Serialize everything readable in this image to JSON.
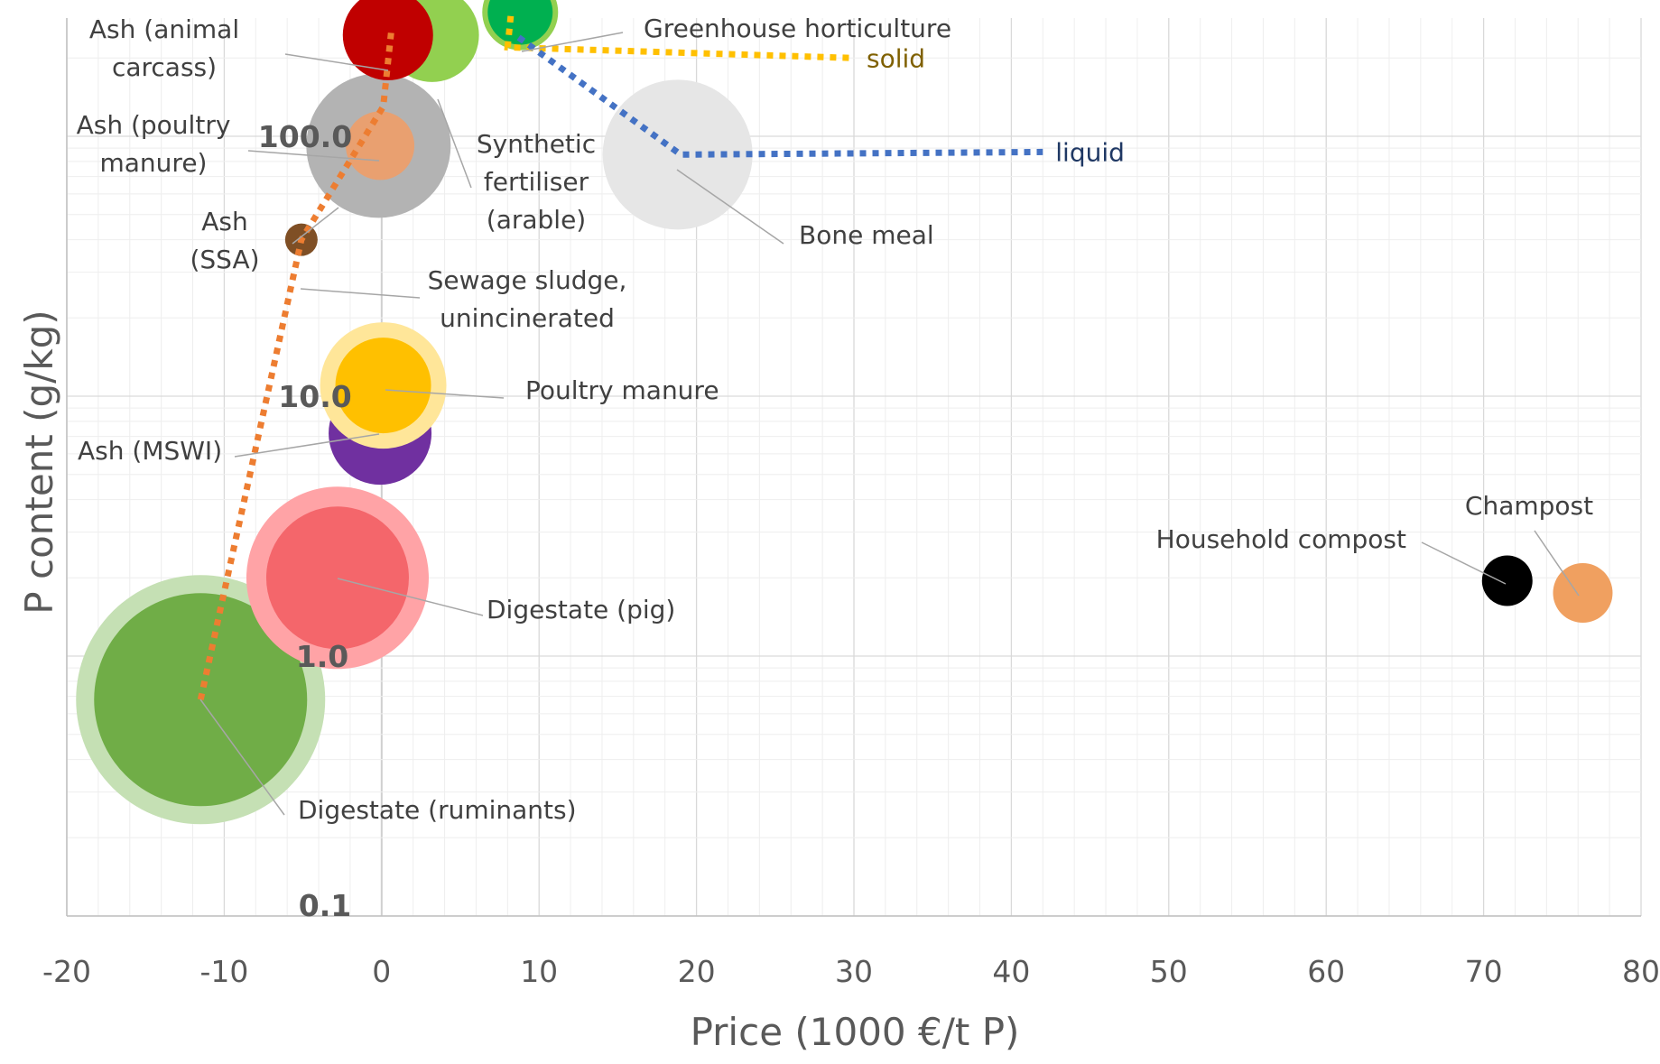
{
  "chart_data": {
    "type": "scatter",
    "subtype": "bubble",
    "title": "",
    "xlabel": "Price (1000 €/t P)",
    "ylabel": "P content (g/kg)",
    "xlim": [
      -20,
      80
    ],
    "ylim": [
      0.1,
      500
    ],
    "yscale": "log",
    "x_ticks": [
      "-20",
      "-10",
      "0",
      "10",
      "20",
      "30",
      "40",
      "50",
      "60",
      "70",
      "80"
    ],
    "y_ticks": [
      "0.1",
      "1.0",
      "10.0",
      "100.0"
    ],
    "grid": true,
    "legend": "none",
    "bubbles": [
      {
        "label": "Digestate (ruminants)",
        "x": -11.5,
        "y": 0.68,
        "color": "#70ad47",
        "halo_color": "#c5e0b4"
      },
      {
        "label": "Digestate (pig)",
        "x": -2.8,
        "y": 2.0,
        "color": "#f4666b",
        "halo_color": "#ffa3a6"
      },
      {
        "label": "Ash (MSWI)",
        "x": -0.1,
        "y": 7.2,
        "color": "#7030a0"
      },
      {
        "label": "Poultry manure",
        "x": 0.1,
        "y": 11.0,
        "color": "#ffc000",
        "halo_color": "#ffe699"
      },
      {
        "label": "Sewage sludge, unincinerated",
        "x": -5.1,
        "y": 40.0,
        "color": "#7f4f25"
      },
      {
        "label": "Ash (SSA)",
        "x": -0.2,
        "y": 92.0,
        "color": "#b3b3b3"
      },
      {
        "label": "Ash (poultry manure)",
        "x": -0.1,
        "y": 92.0,
        "color": "#e9a070"
      },
      {
        "label": "Synthetic fertiliser (arable)",
        "x": 3.2,
        "y": 245.0,
        "color": "#92d050"
      },
      {
        "label": "Ash (animal carcass)",
        "x": 0.4,
        "y": 245.0,
        "color": "#c00000"
      },
      {
        "label": "Greenhouse horticulture",
        "x": 8.8,
        "y": 300.0,
        "color": "#00b050",
        "halo_color": "#92d050"
      },
      {
        "label": "Bone meal",
        "x": 18.8,
        "y": 85.0,
        "color": "#e6e6e6"
      },
      {
        "label": "Household compost",
        "x": 71.5,
        "y": 1.95,
        "color": "#000000"
      },
      {
        "label": "Champost",
        "x": 76.3,
        "y": 1.75,
        "color": "#f0a060"
      }
    ],
    "series": [
      {
        "name": "",
        "style": "dotted",
        "color": "#ed7d31",
        "x": [
          -11.5,
          -5.1,
          0.1,
          0.6
        ],
        "y": [
          0.68,
          40.0,
          130.0,
          250.0
        ]
      },
      {
        "name": "solid",
        "style": "dotted",
        "color": "#ffc000",
        "x": [
          8.2,
          8.0,
          30.0
        ],
        "y": [
          290.0,
          220.0,
          200.0
        ]
      },
      {
        "name": "liquid",
        "style": "dotted",
        "color": "#4472c4",
        "x": [
          8.7,
          19.0,
          42.0
        ],
        "y": [
          240.0,
          85.0,
          87.0
        ]
      }
    ],
    "series_label_colors": {
      "solid": "#7f6000",
      "liquid": "#1f3864"
    }
  }
}
